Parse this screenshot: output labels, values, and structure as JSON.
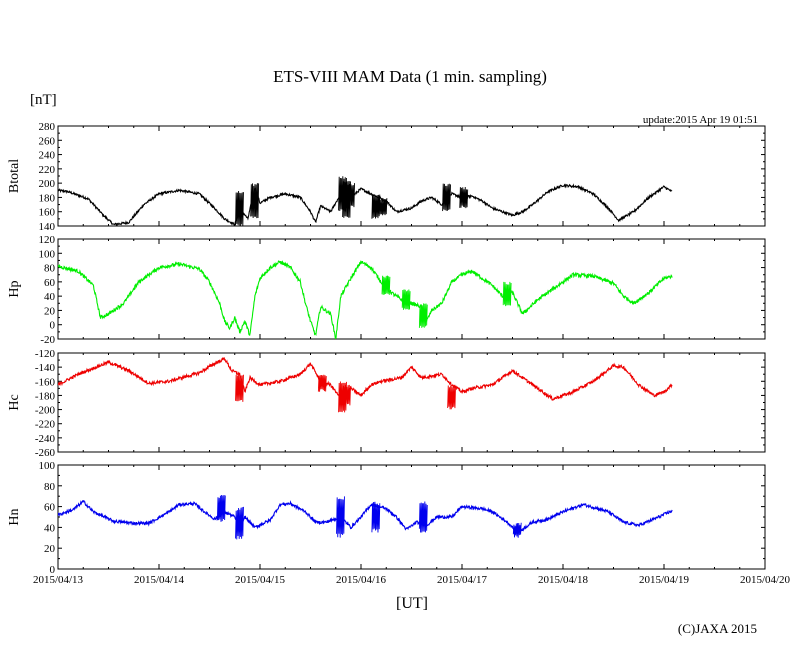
{
  "chart_data": {
    "type": "line",
    "title": "ETS-VIII MAM Data (1 min. sampling)",
    "units_label": "[nT]",
    "update_text": "update:2015 Apr 19 01:51",
    "xlabel": "[UT]",
    "copyright": "(C)JAXA 2015",
    "x_ticks": [
      "2015/04/13",
      "2015/04/14",
      "2015/04/15",
      "2015/04/16",
      "2015/04/17",
      "2015/04/18",
      "2015/04/19",
      "2015/04/20"
    ],
    "x_range_days": [
      0,
      7
    ],
    "data_end_day": 6.08,
    "panels": [
      {
        "name": "Btotal",
        "color": "#000000",
        "ylim": [
          140,
          280
        ],
        "yticks": [
          140,
          160,
          180,
          200,
          220,
          240,
          260,
          280
        ],
        "noise": 1.6,
        "points": [
          [
            0,
            190
          ],
          [
            0.1,
            188
          ],
          [
            0.3,
            178
          ],
          [
            0.45,
            155
          ],
          [
            0.55,
            142
          ],
          [
            0.7,
            145
          ],
          [
            0.85,
            170
          ],
          [
            1.0,
            185
          ],
          [
            1.2,
            190
          ],
          [
            1.4,
            185
          ],
          [
            1.55,
            165
          ],
          [
            1.65,
            150
          ],
          [
            1.75,
            142
          ],
          [
            1.8,
            165
          ],
          [
            1.88,
            150
          ],
          [
            1.95,
            195
          ],
          [
            2.0,
            172
          ],
          [
            2.1,
            180
          ],
          [
            2.25,
            185
          ],
          [
            2.4,
            180
          ],
          [
            2.5,
            160
          ],
          [
            2.55,
            145
          ],
          [
            2.6,
            168
          ],
          [
            2.7,
            160
          ],
          [
            2.8,
            185
          ],
          [
            2.9,
            180
          ],
          [
            3.0,
            192
          ],
          [
            3.1,
            185
          ],
          [
            3.25,
            175
          ],
          [
            3.35,
            160
          ],
          [
            3.5,
            165
          ],
          [
            3.6,
            175
          ],
          [
            3.7,
            180
          ],
          [
            3.8,
            170
          ],
          [
            3.9,
            185
          ],
          [
            4.0,
            180
          ],
          [
            4.1,
            182
          ],
          [
            4.2,
            175
          ],
          [
            4.3,
            165
          ],
          [
            4.4,
            160
          ],
          [
            4.5,
            155
          ],
          [
            4.6,
            160
          ],
          [
            4.7,
            170
          ],
          [
            4.85,
            188
          ],
          [
            5.0,
            197
          ],
          [
            5.15,
            195
          ],
          [
            5.3,
            185
          ],
          [
            5.45,
            165
          ],
          [
            5.55,
            148
          ],
          [
            5.7,
            160
          ],
          [
            5.85,
            180
          ],
          [
            6.0,
            195
          ],
          [
            6.08,
            188
          ]
        ],
        "spikes": [
          [
            1.8,
            140,
            190
          ],
          [
            1.95,
            150,
            200
          ],
          [
            2.82,
            160,
            210
          ],
          [
            2.86,
            150,
            205
          ],
          [
            2.9,
            165,
            200
          ],
          [
            3.15,
            150,
            185
          ],
          [
            3.22,
            155,
            180
          ],
          [
            3.85,
            160,
            200
          ],
          [
            4.02,
            165,
            195
          ]
        ]
      },
      {
        "name": "Hp",
        "color": "#00ee00",
        "ylim": [
          -20,
          120
        ],
        "yticks": [
          -20,
          0,
          20,
          40,
          60,
          80,
          100,
          120
        ],
        "noise": 2.5,
        "points": [
          [
            0,
            82
          ],
          [
            0.2,
            75
          ],
          [
            0.35,
            55
          ],
          [
            0.42,
            10
          ],
          [
            0.5,
            15
          ],
          [
            0.65,
            30
          ],
          [
            0.8,
            60
          ],
          [
            1.0,
            80
          ],
          [
            1.2,
            85
          ],
          [
            1.4,
            78
          ],
          [
            1.5,
            60
          ],
          [
            1.6,
            30
          ],
          [
            1.65,
            5
          ],
          [
            1.7,
            -5
          ],
          [
            1.75,
            10
          ],
          [
            1.8,
            -10
          ],
          [
            1.85,
            5
          ],
          [
            1.9,
            -15
          ],
          [
            1.95,
            40
          ],
          [
            2.0,
            65
          ],
          [
            2.1,
            80
          ],
          [
            2.2,
            88
          ],
          [
            2.3,
            80
          ],
          [
            2.4,
            60
          ],
          [
            2.45,
            30
          ],
          [
            2.5,
            5
          ],
          [
            2.55,
            -15
          ],
          [
            2.6,
            25
          ],
          [
            2.7,
            15
          ],
          [
            2.75,
            -20
          ],
          [
            2.8,
            40
          ],
          [
            2.9,
            65
          ],
          [
            3.0,
            88
          ],
          [
            3.1,
            80
          ],
          [
            3.2,
            60
          ],
          [
            3.3,
            45
          ],
          [
            3.4,
            35
          ],
          [
            3.5,
            30
          ],
          [
            3.6,
            25
          ],
          [
            3.65,
            5
          ],
          [
            3.7,
            20
          ],
          [
            3.8,
            30
          ],
          [
            3.9,
            60
          ],
          [
            4.0,
            70
          ],
          [
            4.1,
            75
          ],
          [
            4.2,
            65
          ],
          [
            4.3,
            55
          ],
          [
            4.4,
            40
          ],
          [
            4.5,
            45
          ],
          [
            4.6,
            15
          ],
          [
            4.75,
            35
          ],
          [
            4.9,
            50
          ],
          [
            5.1,
            70
          ],
          [
            5.3,
            68
          ],
          [
            5.5,
            58
          ],
          [
            5.6,
            40
          ],
          [
            5.7,
            30
          ],
          [
            5.85,
            45
          ],
          [
            6.0,
            65
          ],
          [
            6.08,
            68
          ]
        ],
        "spikes": [
          [
            3.62,
            -5,
            30
          ],
          [
            3.45,
            20,
            50
          ],
          [
            4.45,
            25,
            60
          ],
          [
            3.25,
            40,
            70
          ]
        ]
      },
      {
        "name": "Hc",
        "color": "#ee0000",
        "ylim": [
          -260,
          -120
        ],
        "yticks": [
          -260,
          -240,
          -220,
          -200,
          -180,
          -160,
          -140,
          -120
        ],
        "noise": 2.2,
        "points": [
          [
            0,
            -165
          ],
          [
            0.2,
            -150
          ],
          [
            0.5,
            -133
          ],
          [
            0.7,
            -145
          ],
          [
            0.9,
            -163
          ],
          [
            1.1,
            -160
          ],
          [
            1.4,
            -148
          ],
          [
            1.55,
            -135
          ],
          [
            1.65,
            -128
          ],
          [
            1.72,
            -145
          ],
          [
            1.8,
            -150
          ],
          [
            1.85,
            -175
          ],
          [
            1.9,
            -155
          ],
          [
            2.0,
            -165
          ],
          [
            2.2,
            -160
          ],
          [
            2.4,
            -150
          ],
          [
            2.5,
            -135
          ],
          [
            2.6,
            -160
          ],
          [
            2.7,
            -165
          ],
          [
            2.8,
            -185
          ],
          [
            2.9,
            -170
          ],
          [
            3.0,
            -180
          ],
          [
            3.1,
            -165
          ],
          [
            3.2,
            -160
          ],
          [
            3.4,
            -155
          ],
          [
            3.5,
            -140
          ],
          [
            3.6,
            -155
          ],
          [
            3.8,
            -150
          ],
          [
            3.9,
            -165
          ],
          [
            4.0,
            -175
          ],
          [
            4.1,
            -170
          ],
          [
            4.3,
            -165
          ],
          [
            4.5,
            -145
          ],
          [
            4.7,
            -165
          ],
          [
            4.9,
            -185
          ],
          [
            5.1,
            -175
          ],
          [
            5.3,
            -160
          ],
          [
            5.5,
            -138
          ],
          [
            5.6,
            -140
          ],
          [
            5.75,
            -165
          ],
          [
            5.9,
            -180
          ],
          [
            6.0,
            -175
          ],
          [
            6.08,
            -165
          ]
        ],
        "spikes": [
          [
            1.8,
            -190,
            -150
          ],
          [
            2.82,
            -205,
            -160
          ],
          [
            2.86,
            -195,
            -165
          ],
          [
            3.9,
            -200,
            -165
          ],
          [
            2.62,
            -175,
            -150
          ]
        ]
      },
      {
        "name": "Hn",
        "color": "#0000ee",
        "ylim": [
          0,
          100
        ],
        "yticks": [
          0,
          20,
          40,
          60,
          80,
          100
        ],
        "noise": 1.4,
        "points": [
          [
            0,
            52
          ],
          [
            0.15,
            57
          ],
          [
            0.25,
            65
          ],
          [
            0.35,
            55
          ],
          [
            0.55,
            46
          ],
          [
            0.75,
            44
          ],
          [
            0.9,
            44
          ],
          [
            1.1,
            55
          ],
          [
            1.2,
            62
          ],
          [
            1.35,
            63
          ],
          [
            1.45,
            55
          ],
          [
            1.55,
            48
          ],
          [
            1.65,
            55
          ],
          [
            1.75,
            50
          ],
          [
            1.8,
            35
          ],
          [
            1.85,
            50
          ],
          [
            1.95,
            40
          ],
          [
            2.1,
            47
          ],
          [
            2.2,
            62
          ],
          [
            2.3,
            63
          ],
          [
            2.45,
            55
          ],
          [
            2.55,
            45
          ],
          [
            2.65,
            45
          ],
          [
            2.8,
            50
          ],
          [
            2.9,
            40
          ],
          [
            3.0,
            50
          ],
          [
            3.1,
            62
          ],
          [
            3.25,
            58
          ],
          [
            3.35,
            50
          ],
          [
            3.45,
            38
          ],
          [
            3.55,
            45
          ],
          [
            3.65,
            42
          ],
          [
            3.75,
            50
          ],
          [
            3.9,
            50
          ],
          [
            4.0,
            60
          ],
          [
            4.2,
            58
          ],
          [
            4.3,
            55
          ],
          [
            4.45,
            45
          ],
          [
            4.55,
            35
          ],
          [
            4.7,
            45
          ],
          [
            4.85,
            48
          ],
          [
            5.0,
            55
          ],
          [
            5.2,
            62
          ],
          [
            5.35,
            58
          ],
          [
            5.45,
            55
          ],
          [
            5.6,
            45
          ],
          [
            5.75,
            42
          ],
          [
            5.9,
            48
          ],
          [
            6.08,
            56
          ]
        ],
        "spikes": [
          [
            1.62,
            45,
            72
          ],
          [
            1.8,
            28,
            60
          ],
          [
            2.8,
            30,
            70
          ],
          [
            3.15,
            35,
            65
          ],
          [
            3.62,
            35,
            65
          ],
          [
            4.55,
            30,
            45
          ]
        ]
      }
    ]
  }
}
